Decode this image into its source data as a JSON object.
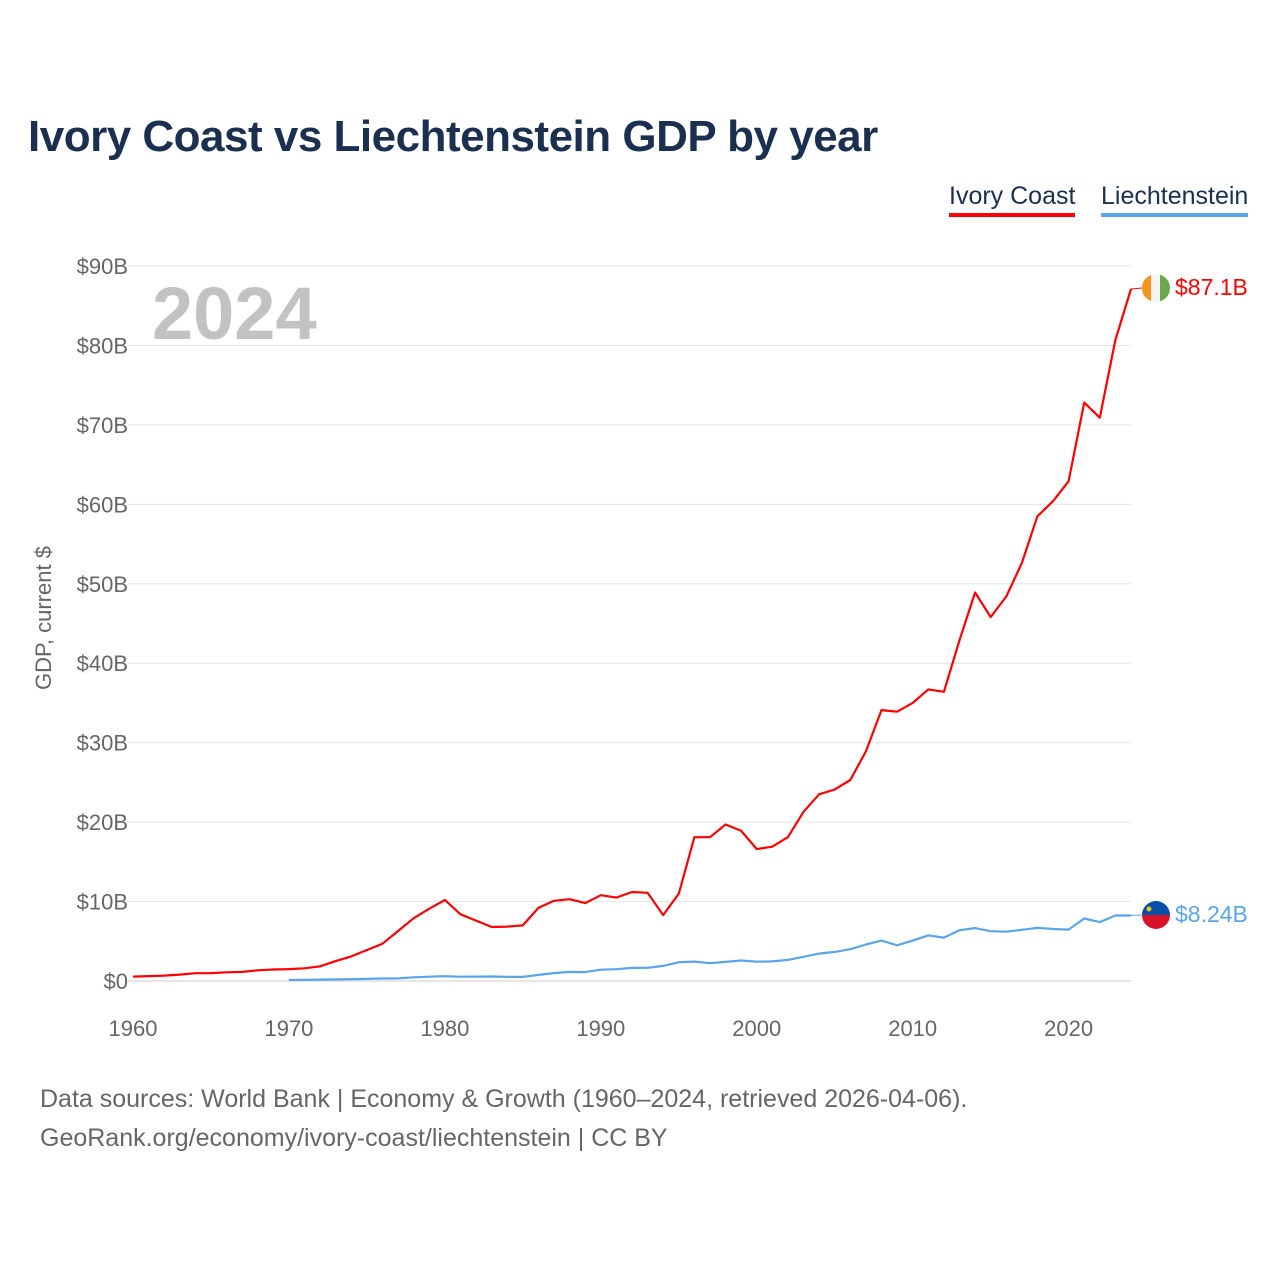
{
  "title": "Ivory Coast vs Liechtenstein GDP by year",
  "legend": [
    "Ivory Coast",
    "Liechtenstein"
  ],
  "footer": {
    "line1": "Data sources: World Bank | Economy & Growth (1960–2024, retrieved 2026-04-06).",
    "line2": "GeoRank.org/economy/ivory-coast/liechtenstein | CC BY"
  },
  "chart_data": {
    "type": "line",
    "title": "Ivory Coast vs Liechtenstein GDP by year",
    "ylabel": "GDP, current $",
    "xlabel": "",
    "year_watermark": "2024",
    "xlim": [
      1960,
      2024
    ],
    "ylim": [
      0,
      90
    ],
    "x_ticks": [
      1960,
      1970,
      1980,
      1990,
      2000,
      2010,
      2020
    ],
    "y_ticks": [
      0,
      10,
      20,
      30,
      40,
      50,
      60,
      70,
      80,
      90
    ],
    "y_tick_labels": [
      "$0",
      "$10B",
      "$20B",
      "$30B",
      "$40B",
      "$50B",
      "$60B",
      "$70B",
      "$80B",
      "$90B"
    ],
    "grid": true,
    "legend_position": "top-right",
    "series": [
      {
        "name": "Ivory Coast",
        "color": "#ff0000",
        "end_label": "$87.1B",
        "start_year": 1960,
        "values": [
          0.55,
          0.62,
          0.68,
          0.8,
          0.98,
          1.0,
          1.1,
          1.15,
          1.35,
          1.45,
          1.5,
          1.6,
          1.85,
          2.5,
          3.1,
          3.9,
          4.7,
          6.3,
          7.9,
          9.1,
          10.2,
          8.4,
          7.6,
          6.8,
          6.85,
          7.0,
          9.2,
          10.1,
          10.3,
          9.8,
          10.8,
          10.5,
          11.2,
          11.1,
          8.3,
          11.0,
          18.1,
          18.1,
          19.7,
          18.9,
          16.6,
          16.9,
          18.1,
          21.3,
          23.5,
          24.1,
          25.3,
          28.9,
          34.1,
          33.9,
          35.0,
          36.7,
          36.4,
          42.9,
          48.9,
          45.8,
          48.4,
          52.6,
          58.5,
          60.4,
          62.9,
          72.8,
          70.9,
          80.7,
          87.1
        ]
      },
      {
        "name": "Liechtenstein",
        "color": "#5aa5ea",
        "end_label": "$8.24B",
        "start_year": 1970,
        "values": [
          0.12,
          0.14,
          0.17,
          0.2,
          0.24,
          0.27,
          0.31,
          0.33,
          0.47,
          0.54,
          0.6,
          0.54,
          0.56,
          0.57,
          0.52,
          0.52,
          0.77,
          1.0,
          1.15,
          1.12,
          1.42,
          1.49,
          1.65,
          1.66,
          1.9,
          2.37,
          2.44,
          2.24,
          2.41,
          2.58,
          2.43,
          2.47,
          2.65,
          3.05,
          3.45,
          3.66,
          4.0,
          4.6,
          5.08,
          4.5,
          5.08,
          5.74,
          5.46,
          6.39,
          6.66,
          6.27,
          6.21,
          6.45,
          6.68,
          6.55,
          6.47,
          7.87,
          7.41,
          8.24,
          8.24
        ]
      }
    ]
  }
}
